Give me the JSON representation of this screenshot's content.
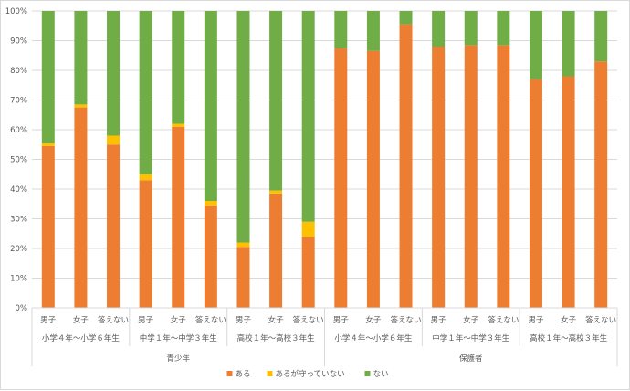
{
  "chart_data": {
    "type": "bar",
    "stacked": true,
    "title": "",
    "xlabel": "",
    "ylabel": "",
    "ylim": [
      0,
      100
    ],
    "y_ticks": [
      "0%",
      "10%",
      "20%",
      "30%",
      "40%",
      "50%",
      "60%",
      "70%",
      "80%",
      "90%",
      "100%"
    ],
    "grid": true,
    "legend_position": "bottom",
    "categories": [
      "男子",
      "女子",
      "答えない",
      "男子",
      "女子",
      "答えない",
      "男子",
      "女子",
      "答えない",
      "男子",
      "女子",
      "答えない",
      "男子",
      "女子",
      "答えない",
      "男子",
      "女子",
      "答えない"
    ],
    "groups": [
      "小学４年～小学６年生",
      "中学１年～中学３年生",
      "高校１年～高校３年生",
      "小学４年～小学６年生",
      "中学１年～中学３年生",
      "高校１年～高校３年生"
    ],
    "supergroups": [
      "青少年",
      "保護者"
    ],
    "series": [
      {
        "name": "ある",
        "color": "#ed7d31",
        "values": [
          54.5,
          67.5,
          55,
          43,
          61,
          34.5,
          20.5,
          38.5,
          24,
          87.5,
          86.5,
          95.5,
          88,
          88.5,
          88.5,
          77,
          78,
          83
        ]
      },
      {
        "name": "あるが守っていない",
        "color": "#ffc000",
        "values": [
          1,
          1,
          3,
          2,
          1,
          1.5,
          1.5,
          1,
          5,
          0,
          0,
          0,
          0,
          0,
          0,
          0,
          0,
          0
        ]
      },
      {
        "name": "ない",
        "color": "#70ad47",
        "values": [
          44.5,
          31.5,
          42,
          55,
          38,
          64,
          78,
          60.5,
          71,
          12.5,
          13.5,
          4.5,
          12,
          11.5,
          11.5,
          23,
          22,
          17
        ]
      }
    ]
  }
}
